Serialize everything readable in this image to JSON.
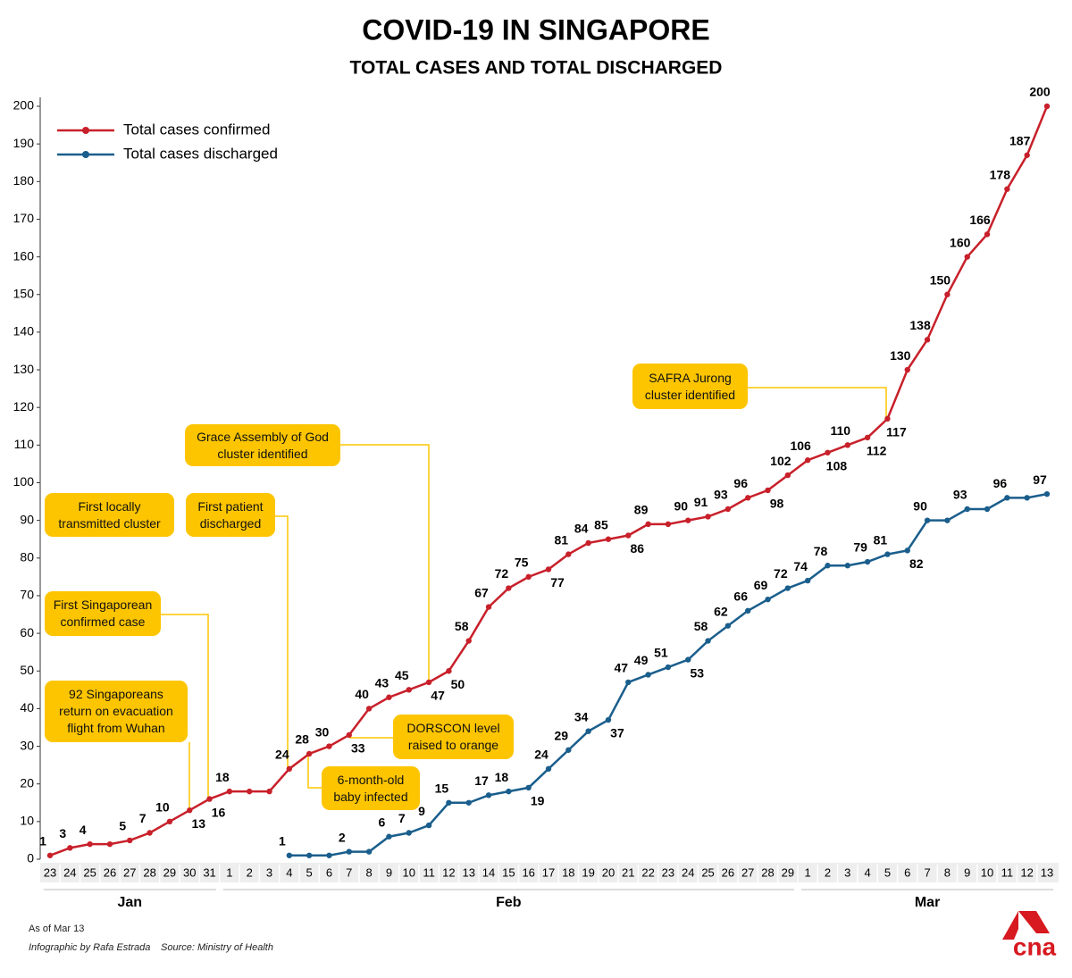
{
  "chart_data": {
    "type": "line",
    "title": "COVID-19 IN SINGAPORE",
    "subtitle": "TOTAL CASES AND TOTAL DISCHARGED",
    "categories": [
      "23",
      "24",
      "25",
      "26",
      "27",
      "28",
      "29",
      "30",
      "31",
      "1",
      "2",
      "3",
      "4",
      "5",
      "6",
      "7",
      "8",
      "9",
      "10",
      "11",
      "12",
      "13",
      "14",
      "15",
      "16",
      "17",
      "18",
      "19",
      "20",
      "21",
      "22",
      "23",
      "24",
      "25",
      "26",
      "27",
      "28",
      "29",
      "1",
      "2",
      "3",
      "4",
      "5",
      "6",
      "7",
      "8",
      "9",
      "10",
      "11",
      "12",
      "13"
    ],
    "months": [
      "Jan",
      "Feb",
      "Mar"
    ],
    "series": [
      {
        "name": "Total cases confirmed",
        "color": "#c8202a",
        "values": [
          1,
          3,
          4,
          4,
          5,
          7,
          10,
          13,
          16,
          18,
          18,
          18,
          24,
          28,
          30,
          33,
          40,
          43,
          45,
          47,
          50,
          58,
          67,
          72,
          75,
          77,
          81,
          84,
          85,
          86,
          89,
          89,
          90,
          91,
          93,
          96,
          98,
          102,
          106,
          108,
          110,
          112,
          117,
          130,
          138,
          150,
          160,
          166,
          178,
          187,
          200
        ],
        "value_labels": [
          "1",
          "3",
          "4",
          null,
          "5",
          "7",
          "10",
          "13",
          "16",
          "18",
          null,
          null,
          "24",
          "28",
          "30",
          "33",
          "40",
          "43",
          "45",
          "47",
          "50",
          "58",
          "67",
          "72",
          "75",
          "77",
          "81",
          "84",
          "85",
          "86",
          "89",
          null,
          "90",
          "91",
          "93",
          "96",
          "98",
          "102",
          "106",
          "108",
          "110",
          "112",
          "117",
          "130",
          "138",
          "150",
          "160",
          "166",
          "178",
          "187",
          "200"
        ]
      },
      {
        "name": "Total cases discharged",
        "color": "#1a5e8c",
        "values": [
          null,
          null,
          null,
          null,
          null,
          null,
          null,
          null,
          null,
          null,
          null,
          null,
          1,
          1,
          1,
          2,
          2,
          6,
          7,
          9,
          15,
          15,
          17,
          18,
          19,
          24,
          29,
          34,
          37,
          47,
          49,
          51,
          53,
          58,
          62,
          66,
          69,
          72,
          74,
          78,
          78,
          79,
          81,
          82,
          90,
          90,
          93,
          93,
          96,
          96,
          97
        ],
        "value_labels": [
          null,
          null,
          null,
          null,
          null,
          null,
          null,
          null,
          null,
          null,
          null,
          null,
          "1",
          null,
          null,
          "2",
          null,
          "6",
          "7",
          "9",
          "15",
          null,
          "17",
          "18",
          "19",
          "24",
          "29",
          "34",
          "37",
          "47",
          "49",
          "51",
          "53",
          "58",
          "62",
          "66",
          "69",
          "72",
          "74",
          "78",
          null,
          "79",
          "81",
          "82",
          "90",
          null,
          "93",
          null,
          "96",
          null,
          "97"
        ]
      }
    ],
    "ylim": [
      0,
      200
    ],
    "yticks": [
      0,
      10,
      20,
      30,
      40,
      50,
      60,
      70,
      80,
      90,
      100,
      110,
      120,
      130,
      140,
      150,
      160,
      170,
      180,
      190,
      200
    ],
    "legend": "top-left",
    "annotations": [
      "First locally\ntransmitted cluster",
      "First patient\ndischarged",
      "Grace Assembly of God\ncluster identified",
      "First Singaporean\nconfirmed case",
      "92 Singaporeans\nreturn on evacuation\nflight from Wuhan",
      "DORSCON level\nraised to orange",
      "6-month-old\nbaby infected",
      "SAFRA Jurong\ncluster identified"
    ],
    "as_of": "As of Mar 13",
    "credit": "Infographic by Rafa Estrada",
    "source": "Source: Ministry of Health",
    "logo": "cna"
  }
}
